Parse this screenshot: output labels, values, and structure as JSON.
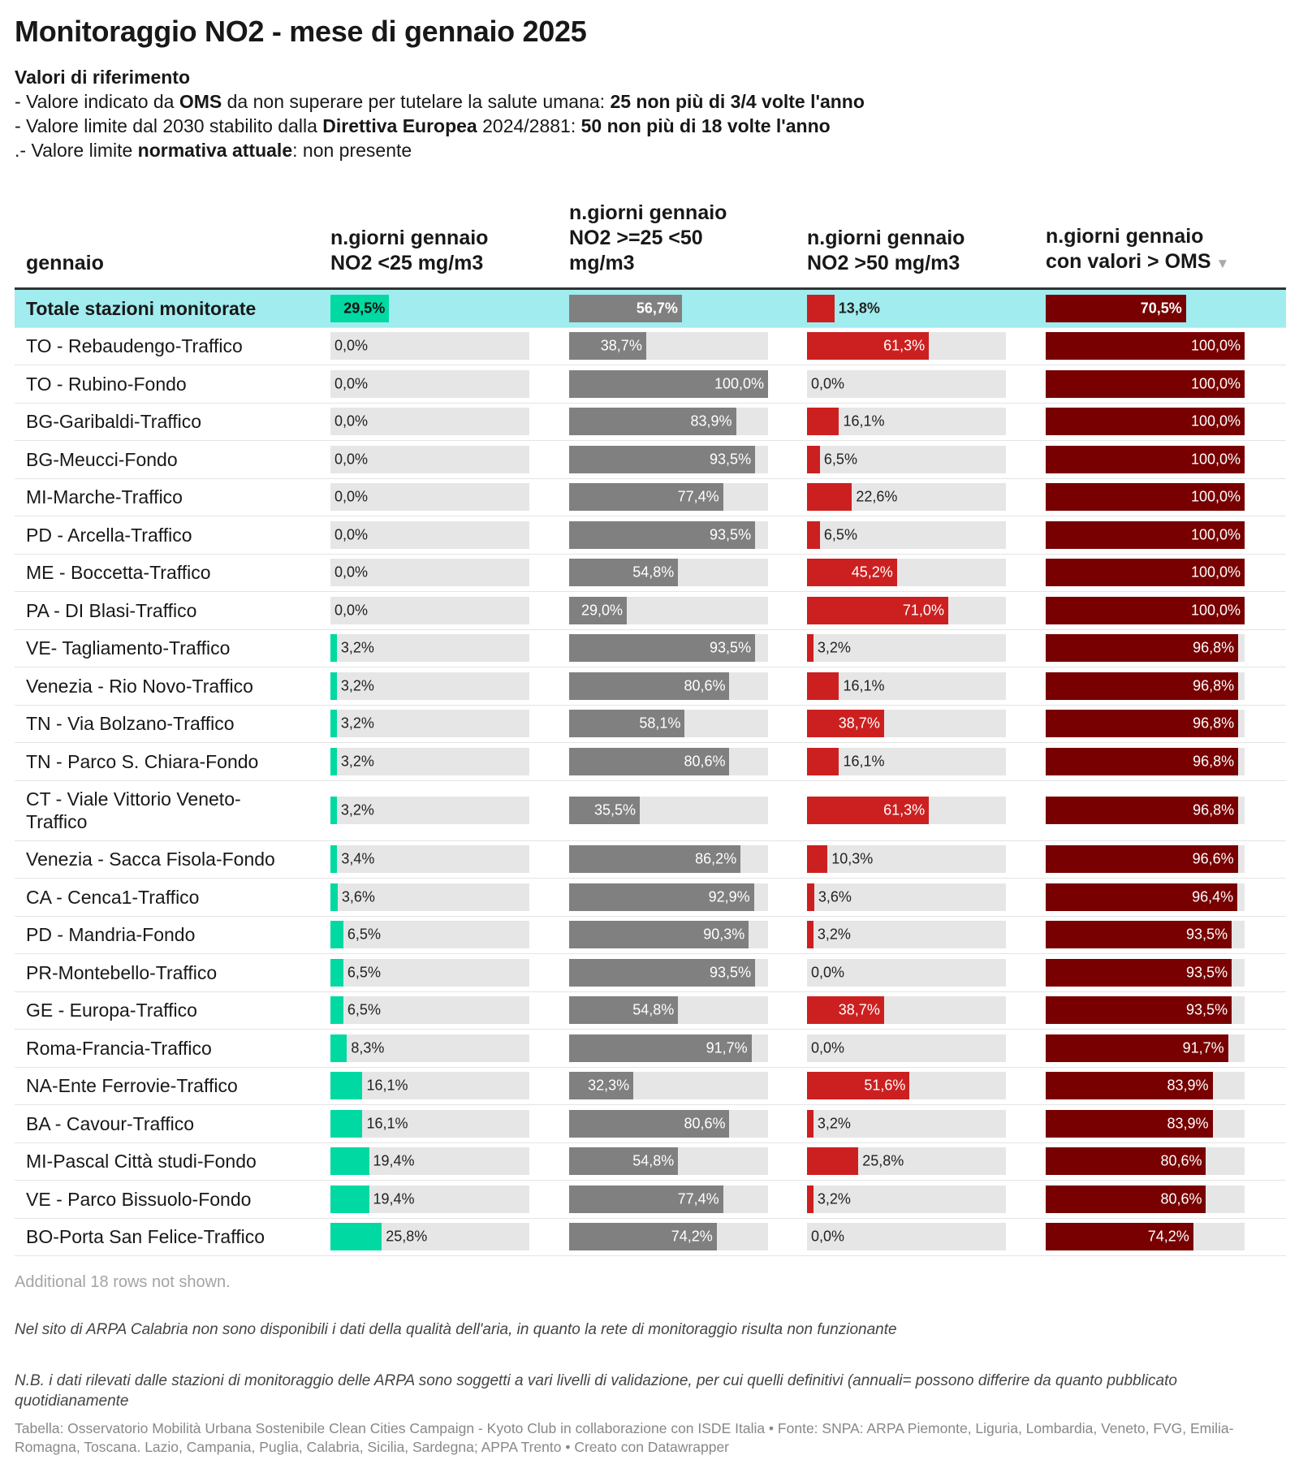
{
  "title": "Monitoraggio NO2 - mese di gennaio 2025",
  "intro": {
    "heading": "Valori di riferimento",
    "line1": {
      "a": "- Valore indicato da ",
      "b": "OMS",
      "c": " da non superare per tutelare la salute umana: ",
      "d": "25 non più di 3/4 volte l'anno"
    },
    "line2": {
      "a": "- Valore limite dal 2030 stabilito dalla ",
      "b": "Direttiva Europea",
      "c": " 2024/2881: ",
      "d": "50 non più di 18 volte l'anno"
    },
    "line3": {
      "a": ".- Valore limite ",
      "b": "normativa attuale",
      "c": ": non presente"
    }
  },
  "colors": {
    "col1": "#00d9a2",
    "col2": "#808080",
    "col3": "#cc2020",
    "col4": "#780000",
    "total_bg": "#a1ecef",
    "bar_bg": "#e6e6e6"
  },
  "chart_data": {
    "type": "table",
    "columns": [
      "gennaio",
      "n.giorni gennaio\nNO2  <25 mg/m3",
      "n.giorni gennaio\nNO2  >=25 <50\nmg/m3",
      "n.giorni gennaio\nNO2  >50 mg/m3",
      "n.giorni gennaio\ncon valori > OMS"
    ],
    "sort_icon": "▼",
    "unit": "%",
    "rows": [
      {
        "name": "Totale stazioni monitorate",
        "values": [
          29.5,
          56.7,
          13.8,
          70.5
        ],
        "total": true
      },
      {
        "name": "TO - Rebaudengo-Traffico",
        "values": [
          0.0,
          38.7,
          61.3,
          100.0
        ]
      },
      {
        "name": "TO - Rubino-Fondo",
        "values": [
          0.0,
          100.0,
          0.0,
          100.0
        ]
      },
      {
        "name": "BG-Garibaldi-Traffico",
        "values": [
          0.0,
          83.9,
          16.1,
          100.0
        ]
      },
      {
        "name": "BG-Meucci-Fondo",
        "values": [
          0.0,
          93.5,
          6.5,
          100.0
        ]
      },
      {
        "name": "MI-Marche-Traffico",
        "values": [
          0.0,
          77.4,
          22.6,
          100.0
        ]
      },
      {
        "name": "PD - Arcella-Traffico",
        "values": [
          0.0,
          93.5,
          6.5,
          100.0
        ]
      },
      {
        "name": "ME - Boccetta-Traffico",
        "values": [
          0.0,
          54.8,
          45.2,
          100.0
        ]
      },
      {
        "name": "PA - DI Blasi-Traffico",
        "values": [
          0.0,
          29.0,
          71.0,
          100.0
        ]
      },
      {
        "name": "VE- Tagliamento-Traffico",
        "values": [
          3.2,
          93.5,
          3.2,
          96.8
        ]
      },
      {
        "name": "Venezia - Rio Novo-Traffico",
        "values": [
          3.2,
          80.6,
          16.1,
          96.8
        ]
      },
      {
        "name": "TN - Via Bolzano-Traffico",
        "values": [
          3.2,
          58.1,
          38.7,
          96.8
        ]
      },
      {
        "name": "TN - Parco S. Chiara-Fondo",
        "values": [
          3.2,
          80.6,
          16.1,
          96.8
        ]
      },
      {
        "name": "CT - Viale Vittorio Veneto-Traffico",
        "values": [
          3.2,
          35.5,
          61.3,
          96.8
        ],
        "tall": true
      },
      {
        "name": "Venezia - Sacca Fisola-Fondo",
        "values": [
          3.4,
          86.2,
          10.3,
          96.6
        ]
      },
      {
        "name": "CA - Cenca1-Traffico",
        "values": [
          3.6,
          92.9,
          3.6,
          96.4
        ]
      },
      {
        "name": "PD - Mandria-Fondo",
        "values": [
          6.5,
          90.3,
          3.2,
          93.5
        ]
      },
      {
        "name": "PR-Montebello-Traffico",
        "values": [
          6.5,
          93.5,
          0.0,
          93.5
        ]
      },
      {
        "name": "GE - Europa-Traffico",
        "values": [
          6.5,
          54.8,
          38.7,
          93.5
        ]
      },
      {
        "name": "Roma-Francia-Traffico",
        "values": [
          8.3,
          91.7,
          0.0,
          91.7
        ]
      },
      {
        "name": "NA-Ente Ferrovie-Traffico",
        "values": [
          16.1,
          32.3,
          51.6,
          83.9
        ]
      },
      {
        "name": "BA - Cavour-Traffico",
        "values": [
          16.1,
          80.6,
          3.2,
          83.9
        ]
      },
      {
        "name": "MI-Pascal Città studi-Fondo",
        "values": [
          19.4,
          54.8,
          25.8,
          80.6
        ]
      },
      {
        "name": "VE - Parco Bissuolo-Fondo",
        "values": [
          19.4,
          77.4,
          3.2,
          80.6
        ]
      },
      {
        "name": "BO-Porta San Felice-Traffico",
        "values": [
          25.8,
          74.2,
          0.0,
          74.2
        ]
      }
    ]
  },
  "more_rows": "Additional 18 rows not shown.",
  "note1": "Nel sito di ARPA Calabria non sono disponibili i dati della qualità dell'aria, in quanto la rete di monitoraggio risulta non funzionante",
  "note2": "N.B. i dati rilevati dalle stazioni di monitoraggio delle ARPA sono soggetti a vari livelli di validazione, per cui quelli definitivi (annuali= possono differire da quanto pubblicato quotidianamente",
  "footer": "Tabella: Osservatorio Mobilità Urbana Sostenibile Clean Cities Campaign - Kyoto Club in collaborazione con ISDE Italia • Fonte: SNPA: ARPA Piemonte, Liguria, Lombardia, Veneto, FVG, Emilia-Romagna, Toscana. Lazio, Campania, Puglia, Calabria, Sicilia, Sardegna; APPA Trento • Creato con Datawrapper"
}
